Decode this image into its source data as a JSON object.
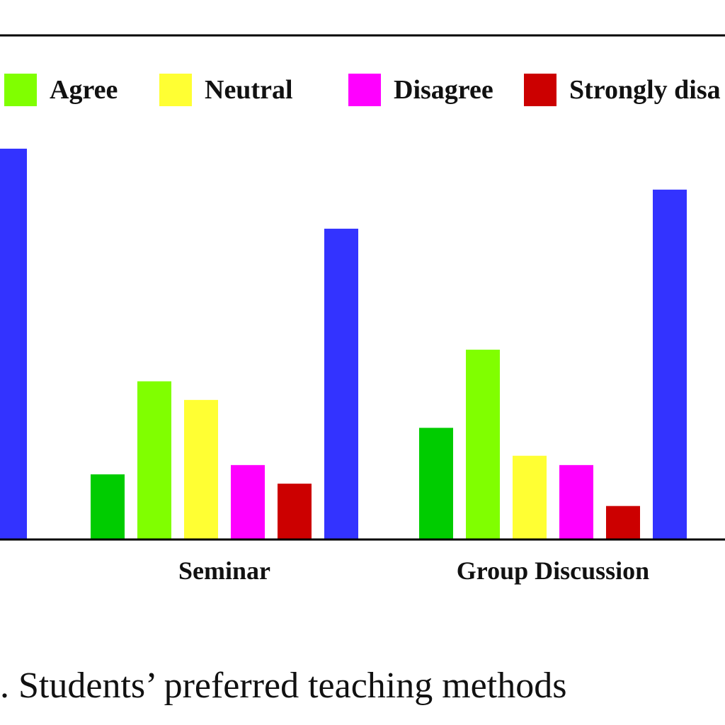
{
  "chart_data": {
    "type": "bar",
    "title": "",
    "caption": ". Students’ preferred teaching methods",
    "xlabel": "",
    "ylabel": "",
    "categories": [
      "",
      "Seminar",
      "Group Discussion"
    ],
    "legend": [
      "Agree",
      "Neutral",
      "Disagree",
      "Strongly disa"
    ],
    "series": [
      {
        "color": "#00cc00",
        "values": [
          null,
          35,
          60
        ]
      },
      {
        "name": "Agree",
        "color": "#80ff00",
        "values": [
          null,
          85,
          102
        ]
      },
      {
        "name": "Neutral",
        "color": "#ffff33",
        "values": [
          null,
          75,
          45
        ]
      },
      {
        "name": "Disagree",
        "color": "#ff00ff",
        "values": [
          null,
          40,
          40
        ]
      },
      {
        "name": "Strongly disa",
        "color": "#cc0000",
        "values": [
          null,
          30,
          18
        ]
      },
      {
        "color": "#3333ff",
        "values": [
          210,
          167,
          188
        ]
      }
    ],
    "ylim": [
      0,
      210
    ],
    "grid": false,
    "legend_position": "top"
  }
}
